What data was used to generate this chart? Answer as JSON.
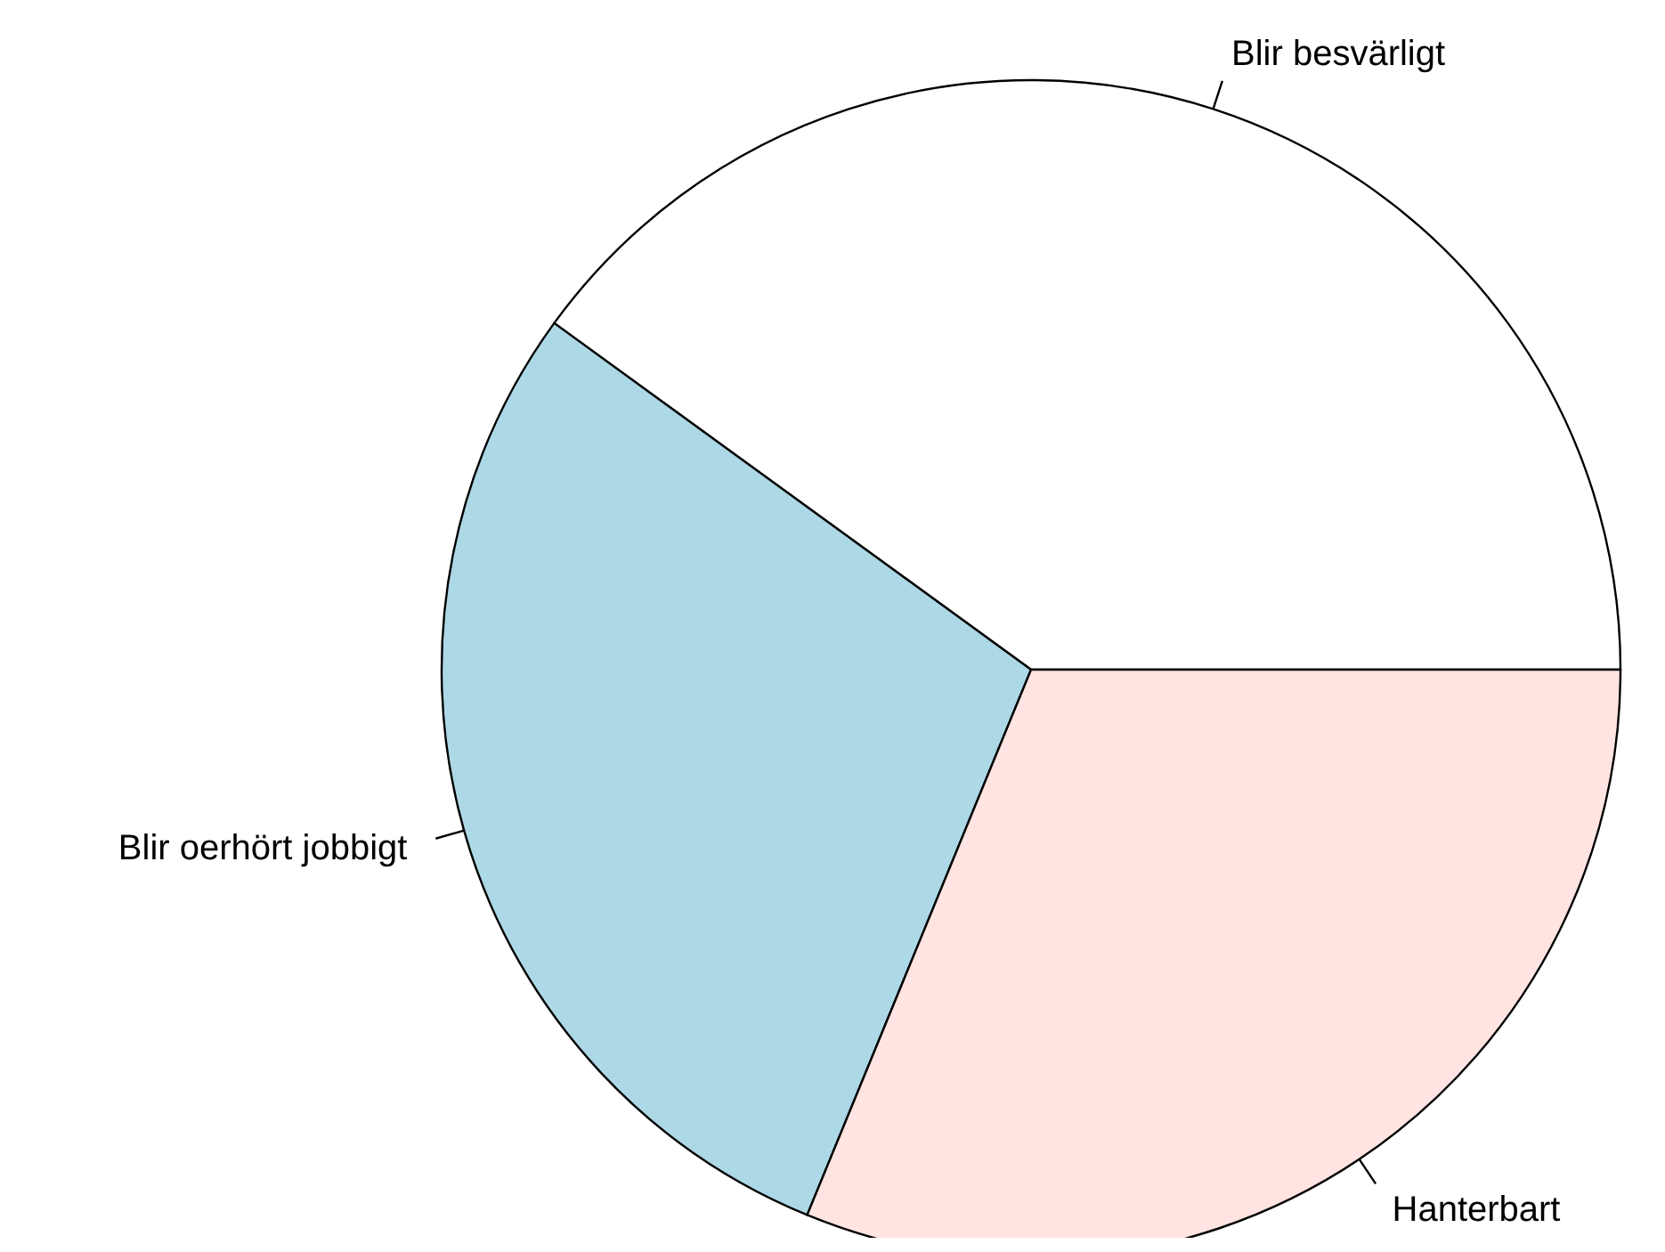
{
  "chart_data": {
    "type": "pie",
    "categories": [
      "Blir besvärligt",
      "Blir oerhört jobbigt",
      "Hanterbart"
    ],
    "values": [
      40,
      28.8,
      31.2
    ],
    "colors": [
      "#ffffff",
      "#add8e6",
      "#ffe4e1"
    ]
  }
}
